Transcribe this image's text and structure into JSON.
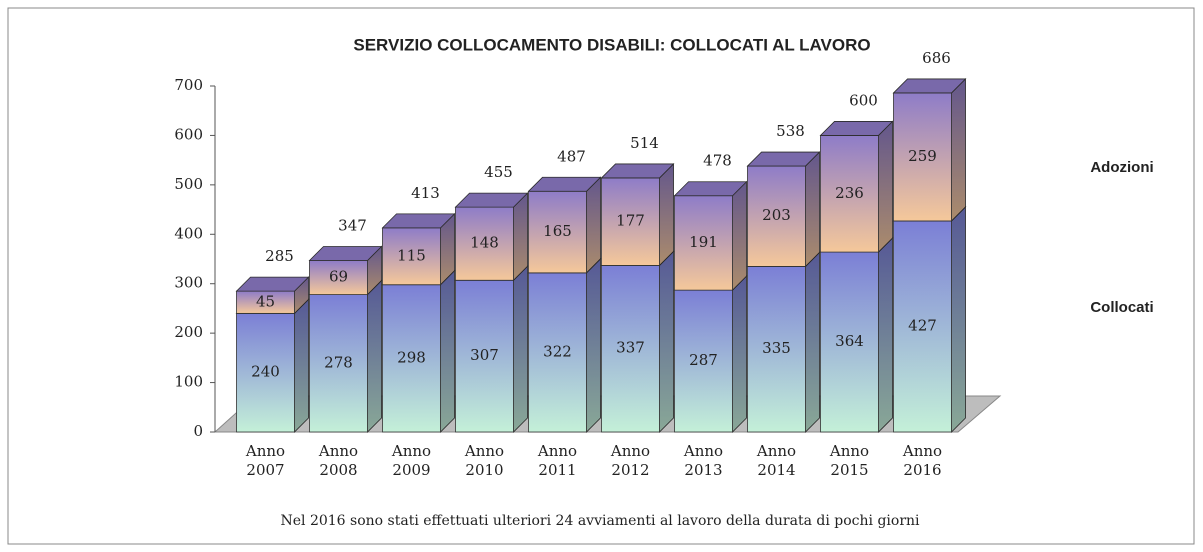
{
  "chart_data": {
    "type": "stacked_bar_3d",
    "title": "SERVIZIO COLLOCAMENTO DISABILI: COLLOCATI AL LAVORO",
    "categories": [
      "Anno 2007",
      "Anno 2008",
      "Anno 2009",
      "Anno 2010",
      "Anno 2011",
      "Anno 2012",
      "Anno 2013",
      "Anno 2014",
      "Anno 2015",
      "Anno 2016"
    ],
    "series": [
      {
        "name": "Collocati",
        "color": "#7b7fd6",
        "values": [
          240,
          278,
          298,
          307,
          322,
          337,
          287,
          335,
          364,
          427
        ]
      },
      {
        "name": "Adozioni",
        "color": "#8e7cc8",
        "values": [
          45,
          69,
          115,
          148,
          165,
          177,
          191,
          203,
          236,
          259
        ]
      }
    ],
    "totals": [
      285,
      347,
      413,
      455,
      487,
      514,
      478,
      538,
      600,
      686
    ],
    "ylim": [
      0,
      700
    ],
    "yticks": [
      0,
      100,
      200,
      300,
      400,
      500,
      600,
      700
    ],
    "note": "Nel 2016 sono stati effettuati ulteriori 24 avviamenti al lavoro della durata di pochi  giorni"
  }
}
